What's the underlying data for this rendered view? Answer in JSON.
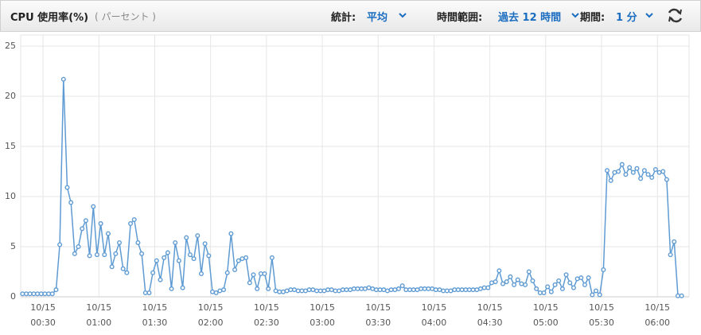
{
  "controls": {
    "stat_label": "統計:",
    "stat_value": "平均",
    "range_label": "時間範囲:",
    "range_value": "過去 12 時間",
    "period_label": "期間:",
    "period_value": "1 分"
  },
  "chart_data": {
    "type": "line",
    "title": "CPU 使用率(%)",
    "subtitle": "( パーセント )",
    "color": "#5f9bd3",
    "grid": true,
    "xlim": [
      "00:18",
      "06:17"
    ],
    "xticks": [
      {
        "value": "00:30",
        "label": "10/15 00:30"
      },
      {
        "value": "01:00",
        "label": "10/15 01:00"
      },
      {
        "value": "01:30",
        "label": "10/15 01:30"
      },
      {
        "value": "02:00",
        "label": "10/15 02:00"
      },
      {
        "value": "02:30",
        "label": "10/15 02:30"
      },
      {
        "value": "03:00",
        "label": "10/15 03:00"
      },
      {
        "value": "03:30",
        "label": "10/15 03:30"
      },
      {
        "value": "04:00",
        "label": "10/15 04:00"
      },
      {
        "value": "04:30",
        "label": "10/15 04:30"
      },
      {
        "value": "05:00",
        "label": "10/15 05:00"
      },
      {
        "value": "05:30",
        "label": "10/15 05:30"
      },
      {
        "value": "06:00",
        "label": "10/15 06:00"
      }
    ],
    "ylim": [
      0,
      25
    ],
    "yticks": [
      0,
      5,
      10,
      15,
      20,
      25
    ],
    "x": [
      "00:19",
      "00:21",
      "00:23",
      "00:25",
      "00:27",
      "00:29",
      "00:31",
      "00:33",
      "00:35",
      "00:37",
      "00:39",
      "00:41",
      "00:43",
      "00:45",
      "00:47",
      "00:49",
      "00:51",
      "00:53",
      "00:55",
      "00:57",
      "00:59",
      "01:01",
      "01:03",
      "01:05",
      "01:07",
      "01:09",
      "01:11",
      "01:13",
      "01:15",
      "01:17",
      "01:19",
      "01:21",
      "01:23",
      "01:25",
      "01:27",
      "01:29",
      "01:31",
      "01:33",
      "01:35",
      "01:37",
      "01:39",
      "01:41",
      "01:43",
      "01:45",
      "01:47",
      "01:49",
      "01:51",
      "01:53",
      "01:55",
      "01:57",
      "01:59",
      "02:01",
      "02:03",
      "02:05",
      "02:07",
      "02:09",
      "02:11",
      "02:13",
      "02:15",
      "02:17",
      "02:19",
      "02:21",
      "02:23",
      "02:25",
      "02:27",
      "02:29",
      "02:31",
      "02:33",
      "02:35",
      "02:37",
      "02:39",
      "02:41",
      "02:43",
      "02:45",
      "02:47",
      "02:49",
      "02:51",
      "02:53",
      "02:55",
      "02:57",
      "02:59",
      "03:01",
      "03:03",
      "03:05",
      "03:07",
      "03:09",
      "03:11",
      "03:13",
      "03:15",
      "03:17",
      "03:19",
      "03:21",
      "03:23",
      "03:25",
      "03:27",
      "03:29",
      "03:31",
      "03:33",
      "03:35",
      "03:37",
      "03:39",
      "03:41",
      "03:43",
      "03:45",
      "03:47",
      "03:49",
      "03:51",
      "03:53",
      "03:55",
      "03:57",
      "03:59",
      "04:01",
      "04:03",
      "04:05",
      "04:07",
      "04:09",
      "04:11",
      "04:13",
      "04:15",
      "04:17",
      "04:19",
      "04:21",
      "04:23",
      "04:25",
      "04:27",
      "04:29",
      "04:31",
      "04:33",
      "04:35",
      "04:37",
      "04:39",
      "04:41",
      "04:43",
      "04:45",
      "04:47",
      "04:49",
      "04:51",
      "04:53",
      "04:55",
      "04:57",
      "04:59",
      "05:01",
      "05:03",
      "05:05",
      "05:07",
      "05:09",
      "05:11",
      "05:13",
      "05:15",
      "05:17",
      "05:19",
      "05:21",
      "05:23",
      "05:25",
      "05:27",
      "05:29",
      "05:31",
      "05:33",
      "05:35",
      "05:37",
      "05:39",
      "05:41",
      "05:43",
      "05:45",
      "05:47",
      "05:49",
      "05:51",
      "05:53",
      "05:55",
      "05:57",
      "05:59",
      "06:01",
      "06:03",
      "06:05",
      "06:07",
      "06:09",
      "06:11",
      "06:13"
    ],
    "values": [
      0.3,
      0.3,
      0.3,
      0.3,
      0.3,
      0.3,
      0.3,
      0.3,
      0.3,
      0.7,
      5.2,
      21.7,
      10.9,
      9.4,
      4.3,
      5.0,
      6.8,
      7.6,
      4.1,
      9.0,
      4.2,
      7.3,
      4.2,
      6.3,
      3.0,
      4.3,
      5.4,
      2.8,
      2.4,
      7.3,
      7.7,
      5.4,
      4.3,
      0.4,
      0.4,
      2.4,
      3.6,
      1.7,
      3.9,
      4.4,
      0.8,
      5.4,
      3.6,
      0.9,
      5.9,
      4.2,
      3.8,
      6.1,
      2.3,
      5.3,
      4.1,
      0.5,
      0.4,
      0.6,
      0.7,
      2.4,
      6.3,
      2.7,
      3.6,
      3.8,
      3.9,
      1.4,
      2.2,
      0.8,
      2.3,
      2.3,
      0.8,
      3.9,
      0.6,
      0.5,
      0.5,
      0.6,
      0.7,
      0.7,
      0.6,
      0.6,
      0.6,
      0.7,
      0.7,
      0.6,
      0.6,
      0.6,
      0.7,
      0.7,
      0.6,
      0.6,
      0.7,
      0.7,
      0.7,
      0.8,
      0.8,
      0.8,
      0.8,
      0.9,
      0.8,
      0.7,
      0.7,
      0.7,
      0.6,
      0.7,
      0.7,
      0.8,
      1.1,
      0.7,
      0.7,
      0.7,
      0.7,
      0.8,
      0.8,
      0.8,
      0.8,
      0.7,
      0.7,
      0.6,
      0.6,
      0.6,
      0.7,
      0.7,
      0.7,
      0.7,
      0.7,
      0.7,
      0.7,
      0.8,
      0.9,
      0.9,
      1.4,
      1.5,
      2.6,
      1.3,
      1.5,
      2.0,
      1.2,
      1.7,
      1.3,
      1.2,
      2.5,
      1.6,
      0.8,
      0.4,
      0.4,
      1.0,
      0.5,
      1.2,
      1.6,
      0.8,
      2.2,
      1.4,
      0.9,
      1.8,
      1.9,
      1.2,
      1.9,
      0.2,
      0.6,
      0.2,
      2.7,
      12.6,
      11.6,
      12.4,
      12.5,
      13.2,
      12.2,
      12.9,
      12.4,
      12.8,
      11.8,
      12.6,
      12.2,
      11.9,
      12.7,
      12.4,
      12.5,
      11.7,
      4.2,
      5.5,
      0.1,
      0.1
    ]
  }
}
